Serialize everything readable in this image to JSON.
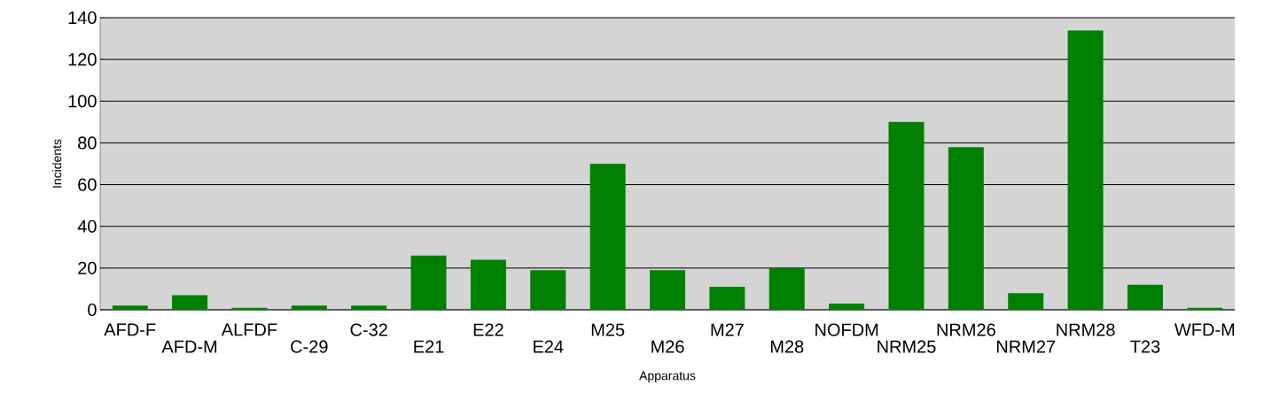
{
  "chart_data": {
    "type": "bar",
    "xlabel": "Apparatus",
    "ylabel": "Incidents",
    "categories": [
      "AFD-F",
      "AFD-M",
      "ALFDF",
      "C-29",
      "C-32",
      "E21",
      "E22",
      "E24",
      "M25",
      "M26",
      "M27",
      "M28",
      "NOFDM",
      "NRM25",
      "NRM26",
      "NRM27",
      "NRM28",
      "T23",
      "WFD-M"
    ],
    "values": [
      2,
      7,
      1,
      2,
      2,
      26,
      24,
      19,
      70,
      19,
      11,
      20,
      3,
      90,
      78,
      8,
      134,
      12,
      1
    ],
    "color": "#008000",
    "ylim": [
      0,
      140
    ],
    "yticks": [
      0,
      20,
      40,
      60,
      80,
      100,
      120,
      140
    ],
    "grid": "y"
  }
}
